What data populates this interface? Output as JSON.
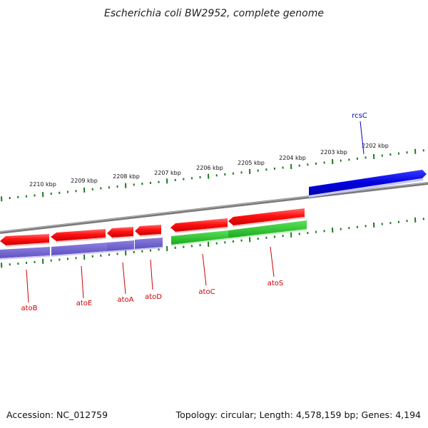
{
  "title": "Escherichia coli BW2952, complete genome",
  "footer": {
    "accession": "Accession: NC_012759",
    "summary": "Topology: circular; Length: 4,578,159 bp; Genes: 4,194"
  },
  "colors": {
    "backbone": "#808080",
    "tick": "#1e7a1e",
    "forward_gene": "#0000dd",
    "reverse_gene": "#ee0000",
    "reverse_cds_purple": "#6a5acd",
    "reverse_cds_green": "#22bb22",
    "label_red": "#cc0000",
    "label_blue": "#0000cc"
  },
  "scale": {
    "unit": "kbp",
    "labels": [
      "2210 kbp",
      "2209 kbp",
      "2208 kbp",
      "2207 kbp",
      "2206 kbp",
      "2205 kbp",
      "2204 kbp",
      "2203 kbp",
      "2202 kbp"
    ]
  },
  "genes": [
    {
      "name": "atoB",
      "strand": "reverse"
    },
    {
      "name": "atoE",
      "strand": "reverse"
    },
    {
      "name": "atoA",
      "strand": "reverse"
    },
    {
      "name": "atoD",
      "strand": "reverse"
    },
    {
      "name": "atoC",
      "strand": "reverse"
    },
    {
      "name": "atoS",
      "strand": "reverse"
    },
    {
      "name": "rcsC",
      "strand": "forward"
    }
  ]
}
